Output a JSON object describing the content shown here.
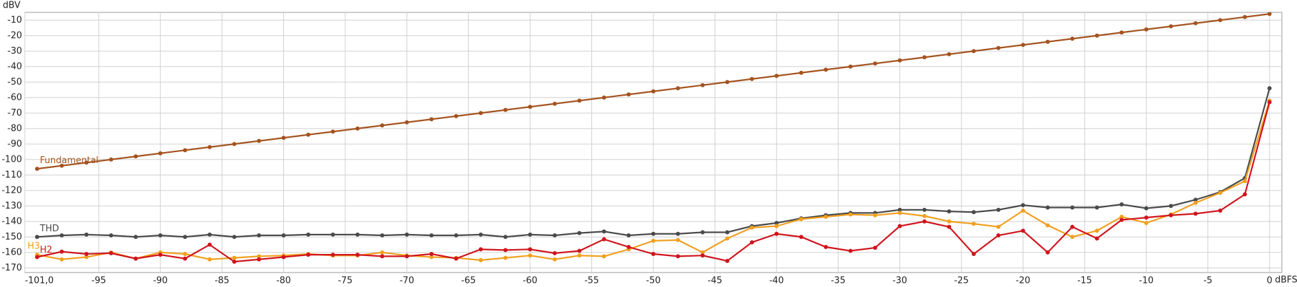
{
  "chart_data": {
    "type": "line",
    "xlabel": "dBFS",
    "ylabel": "dBV",
    "x": [
      -100,
      -98,
      -96,
      -94,
      -92,
      -90,
      -88,
      -86,
      -84,
      -82,
      -80,
      -78,
      -76,
      -74,
      -72,
      -70,
      -68,
      -66,
      -64,
      -62,
      -60,
      -58,
      -56,
      -54,
      -52,
      -50,
      -48,
      -46,
      -44,
      -42,
      -40,
      -38,
      -36,
      -34,
      -32,
      -30,
      -28,
      -26,
      -24,
      -22,
      -20,
      -18,
      -16,
      -14,
      -12,
      -10,
      -8,
      -6,
      -4,
      -2,
      0
    ],
    "series": [
      {
        "name": "Fundamental",
        "color": "#a5531f",
        "values": [
          -106,
          -104,
          -102,
          -100,
          -98,
          -96,
          -94,
          -92,
          -90,
          -88,
          -86,
          -84,
          -82,
          -80,
          -78,
          -76,
          -74,
          -72,
          -70,
          -68,
          -66,
          -64,
          -62,
          -60,
          -58,
          -56,
          -54,
          -52,
          -50,
          -48,
          -46,
          -44,
          -42,
          -40,
          -38,
          -36,
          -34,
          -32,
          -30,
          -28,
          -26,
          -24,
          -22,
          -20,
          -18,
          -16,
          -14,
          -12,
          -10,
          -8,
          -6
        ]
      },
      {
        "name": "THD",
        "color": "#4a4a4a",
        "values": [
          -150,
          -149,
          -148.5,
          -149,
          -150,
          -149,
          -150,
          -148.5,
          -150,
          -149,
          -149,
          -148.5,
          -148.5,
          -148.5,
          -149,
          -148.5,
          -149,
          -149,
          -148.5,
          -150,
          -148.5,
          -149,
          -147.5,
          -146.5,
          -149,
          -148,
          -148,
          -147,
          -147,
          -143,
          -141,
          -138,
          -136,
          -134.5,
          -134.5,
          -132.5,
          -132.5,
          -133.5,
          -134,
          -132.5,
          -129.5,
          -131,
          -131,
          -131,
          -129,
          -131.5,
          -130,
          -126,
          -121,
          -112,
          -54
        ]
      },
      {
        "name": "H3",
        "color": "#f0a020",
        "values": [
          -161.5,
          -164.5,
          -163,
          -160,
          -164,
          -160,
          -161,
          -164.5,
          -163.5,
          -162.5,
          -162,
          -161,
          -162,
          -162,
          -160,
          -162,
          -163,
          -163.5,
          -165,
          -163.5,
          -162,
          -164.5,
          -162,
          -162.5,
          -158,
          -152.5,
          -152,
          -160,
          -151,
          -144,
          -143,
          -138.5,
          -137,
          -135.5,
          -136,
          -134.5,
          -136.5,
          -140,
          -141.5,
          -143.5,
          -133,
          -142.5,
          -150,
          -146,
          -137,
          -141,
          -135.5,
          -128,
          -121.5,
          -114,
          -62
        ]
      },
      {
        "name": "H2",
        "color": "#d0141c",
        "values": [
          -163,
          -159.5,
          -161,
          -160.5,
          -164,
          -161.5,
          -164,
          -155,
          -166,
          -164.5,
          -163,
          -161.5,
          -161.5,
          -161.5,
          -162.5,
          -162.5,
          -161,
          -164,
          -158,
          -158.5,
          -158,
          -160.5,
          -159,
          -151.5,
          -156.5,
          -161,
          -162.5,
          -162,
          -165.5,
          -153.5,
          -148,
          -150,
          -156.5,
          -159,
          -157,
          -143,
          -140,
          -143.5,
          -161,
          -149,
          -146,
          -160,
          -143.5,
          -151,
          -139,
          -137.5,
          -136,
          -135,
          -133,
          -122.5,
          -63
        ]
      }
    ],
    "xlim": [
      -101,
      1
    ],
    "ylim": [
      -173,
      -5
    ],
    "xticks": [
      {
        "value": -101,
        "label": "-101,0"
      },
      -95,
      -90,
      -85,
      -80,
      -75,
      -70,
      -65,
      -60,
      -55,
      -50,
      -45,
      -40,
      -35,
      -30,
      -25,
      -20,
      -15,
      -10,
      -5,
      0
    ],
    "yticks": [
      -10,
      -20,
      -30,
      -40,
      -50,
      -60,
      -70,
      -80,
      -90,
      -100,
      -110,
      -120,
      -130,
      -140,
      -150,
      -160,
      -170
    ],
    "grid": true
  }
}
